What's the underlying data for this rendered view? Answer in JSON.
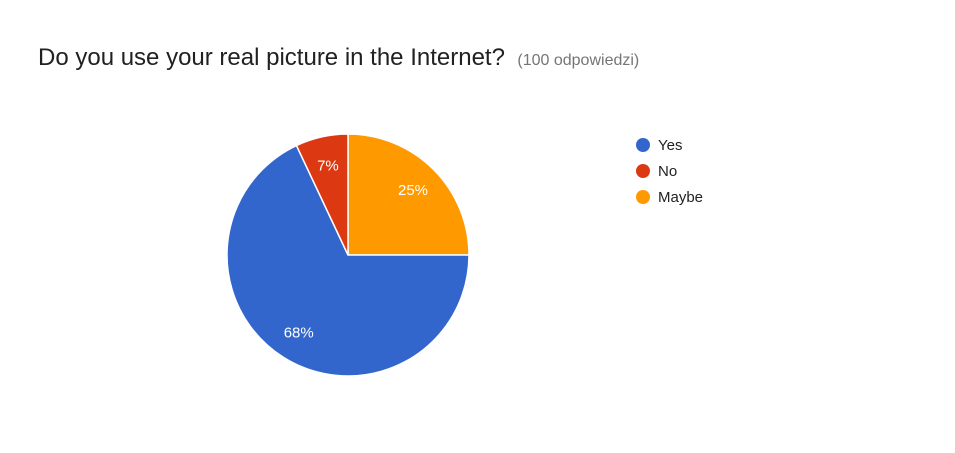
{
  "chart_data": {
    "type": "pie",
    "title": "Do you use your real picture in the Internet?",
    "subtitle": "(100 odpowiedzi)",
    "categories": [
      "Yes",
      "No",
      "Maybe"
    ],
    "values": [
      68,
      7,
      25
    ],
    "slice_labels": [
      "68%",
      "7%",
      "25%"
    ],
    "colors": [
      "#3366cc",
      "#dc3912",
      "#ff9900"
    ],
    "legend_position": "right"
  }
}
